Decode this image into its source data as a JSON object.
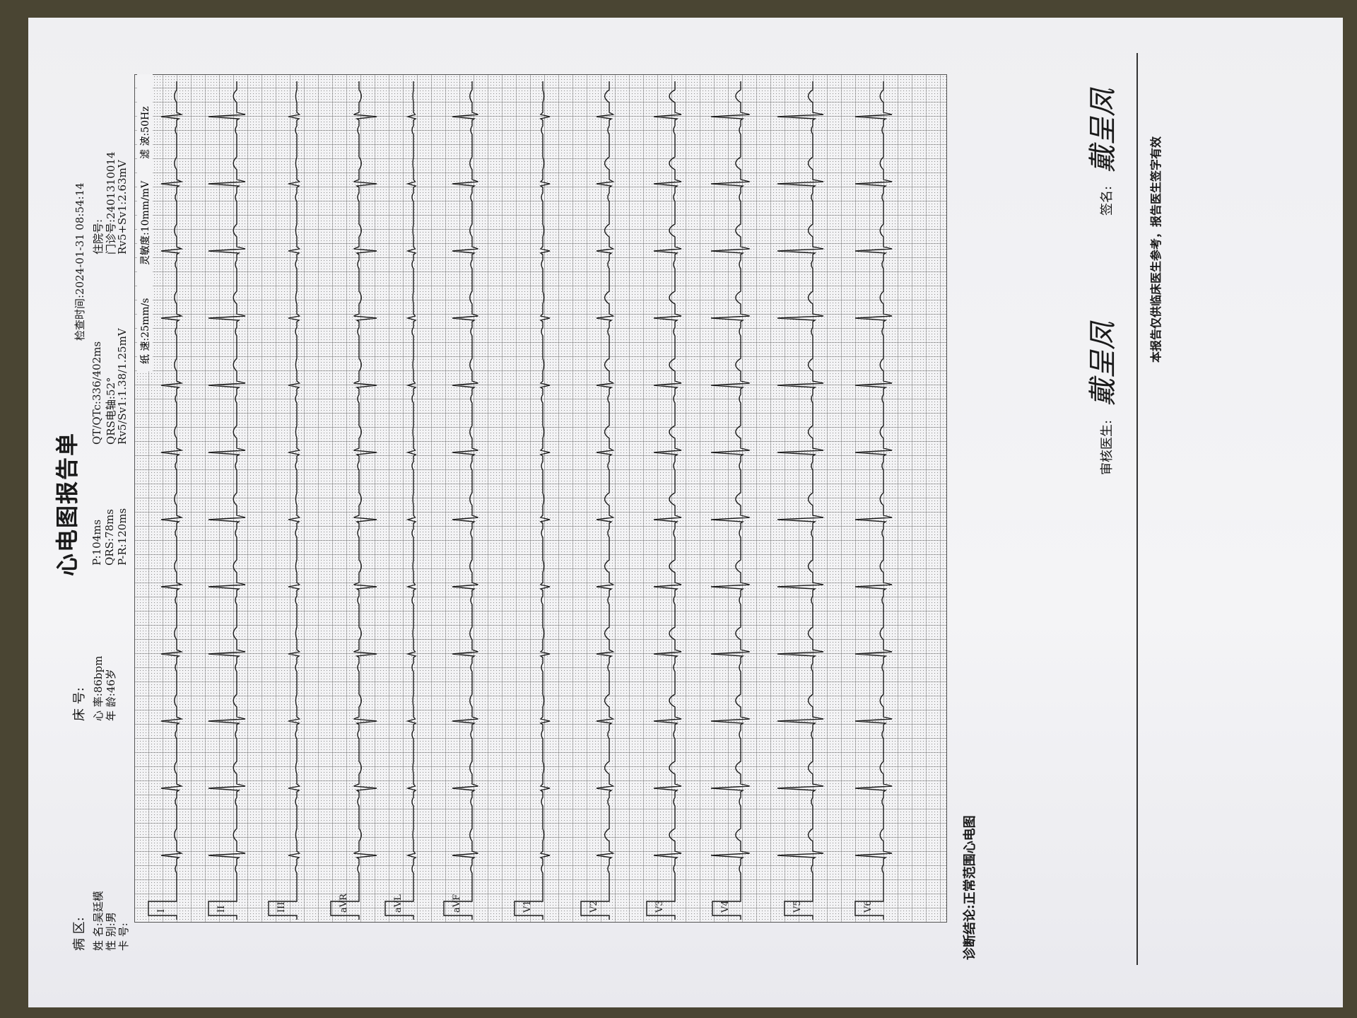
{
  "header": {
    "title": "心电图报告单",
    "ward": "病 区:",
    "bed": "床 号:",
    "exam_time": "检查时间:2024-01-31 08:54:14"
  },
  "patient": {
    "name": "姓 名:吴廷模",
    "sex": "性 别:男",
    "card": "卡 号:",
    "heart_rate": "心 率:86bpm",
    "age": "年 龄:46岁"
  },
  "measurements": {
    "p": "P:104ms",
    "qrs": "QRS:78ms",
    "pr": "P-R:120ms",
    "qt": "QT/QTc:336/402ms",
    "axis": "QRS电轴:52°",
    "rv5sv1": "Rv5/Sv1:1.38/1.25mV",
    "inpatient": "住院号:",
    "outpatient": "门诊号:2401310014",
    "rv5plussv1": "Rv5+Sv1:2.63mV"
  },
  "recording": {
    "paper_speed": "纸 速:25mm/s",
    "sensitivity": "灵敏度:10mm/mV",
    "filter": "滤 波:50Hz"
  },
  "leads": [
    "I",
    "II",
    "III",
    "aVR",
    "aVL",
    "aVF",
    "V1",
    "V2",
    "V3",
    "V4",
    "V5",
    "V6"
  ],
  "diagnosis": "诊断结论:正常范围心电图",
  "signatures": {
    "reviewer": "审核医生:",
    "reviewer_name": "戴呈凤",
    "signature": "签名:",
    "signature_name": "戴呈凤"
  },
  "footer": {
    "disclaimer": "本报告仅供临床医生参考，报告医生签字有效"
  }
}
